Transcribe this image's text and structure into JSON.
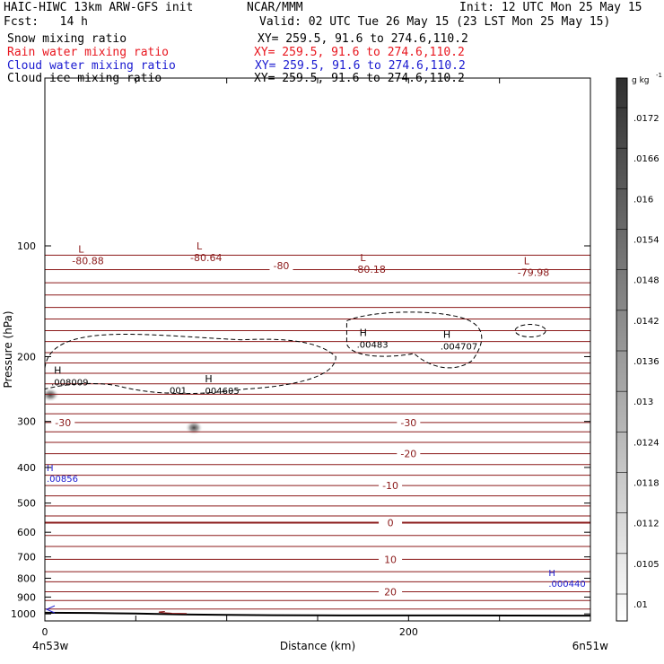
{
  "header": {
    "model": "HAIC-HIWC 13km ARW-GFS init",
    "org": "NCAR/MMM",
    "init": "Init: 12 UTC Mon 25 May 15",
    "fcst": "Fcst:   14 h",
    "valid": "Valid: 02 UTC Tue 26 May 15 (23 LST Mon 25 May 15)"
  },
  "fields": [
    {
      "name": "Snow mixing ratio",
      "xy": "XY= 259.5, 91.6 to 274.6,110.2",
      "color": "#000000"
    },
    {
      "name": "Rain water mixing ratio",
      "xy": "XY= 259.5, 91.6 to 274.6,110.2",
      "color": "#e8161e"
    },
    {
      "name": "Cloud water mixing ratio",
      "xy": "XY= 259.5, 91.6 to 274.6,110.2",
      "color": "#1a1ad0"
    },
    {
      "name": "Cloud ice mixing ratio",
      "xy": "XY= 259.5, 91.6 to 274.6,110.2",
      "color": "#000000"
    }
  ],
  "chart_data": {
    "type": "cross-section",
    "ylabel": "Pressure (hPa)",
    "xlabel": "Distance (km)",
    "x_endpoint_labels": [
      "4n53w",
      "6n51w"
    ],
    "xlim": [
      0,
      300
    ],
    "x_ticks": [
      0,
      200
    ],
    "ylim_hPa": [
      1045,
      35
    ],
    "y_ticks": [
      100,
      200,
      300,
      400,
      500,
      600,
      700,
      800,
      900,
      1000
    ],
    "log_pressure_axis": true,
    "colorbar": {
      "unit": "g kg",
      "unit_exponent": "-1",
      "ticks": [
        ".0172",
        ".0166",
        ".016",
        ".0154",
        ".0148",
        ".0142",
        ".0136",
        ".013",
        ".0124",
        ".0118",
        ".0112",
        ".0105",
        ".01"
      ],
      "range": [
        0.0097,
        0.0175
      ]
    },
    "temperature_contours": {
      "color": "#8b1a1a",
      "line_label_vals": [
        "-80",
        "-30",
        "-30",
        "-20",
        "-10",
        "0",
        "10",
        "20"
      ],
      "line_label_pos": [
        [
          130,
          113
        ],
        [
          10,
          302
        ],
        [
          200,
          302
        ],
        [
          200,
          367
        ],
        [
          190,
          448
        ],
        [
          190,
          565
        ],
        [
          190,
          711
        ],
        [
          190,
          871
        ]
      ],
      "zero_line_p": 565,
      "line_p": [
        106,
        116,
        126,
        136,
        147,
        158,
        170,
        182,
        195,
        208,
        222,
        237,
        253,
        269,
        286,
        302,
        320,
        342,
        367,
        393,
        420,
        448,
        478,
        509,
        542,
        565,
        612,
        656,
        711,
        768,
        818,
        871,
        920,
        970
      ],
      "extrema": [
        {
          "type": "L",
          "value": "-80.88",
          "x": 10,
          "p": 106
        },
        {
          "type": "L",
          "value": "-80.64",
          "x": 75,
          "p": 104
        },
        {
          "type": "L",
          "value": "-80.18",
          "x": 165,
          "p": 112
        },
        {
          "type": "L",
          "value": "-79.98",
          "x": 255,
          "p": 114
        }
      ]
    },
    "snow_contour": {
      "style": "dashed",
      "label": ".001",
      "label_pos": [
        67,
        252
      ],
      "extrema": [
        {
          "type": "H",
          "value": ".008009",
          "x": 5,
          "p": 238
        },
        {
          "type": "H",
          "value": ".004605",
          "x": 88,
          "p": 251
        },
        {
          "type": "H",
          "value": ".00483",
          "x": 173,
          "p": 188
        },
        {
          "type": "H",
          "value": ".004707",
          "x": 219,
          "p": 190
        }
      ]
    },
    "cloud_water": {
      "color": "#1a1ad0",
      "extrema": [
        {
          "type": "H",
          "value": ".00856",
          "x": 0,
          "p": 438
        },
        {
          "type": "H",
          "value": ".000440",
          "x": 276,
          "p": 845
        }
      ]
    },
    "rain_shading": [
      {
        "x": 82,
        "p": 312,
        "peak": 0.0172
      },
      {
        "x": 3,
        "p": 254,
        "peak": 0.0155
      }
    ],
    "terrain": [
      [
        0,
        993
      ],
      [
        25,
        994
      ],
      [
        50,
        998
      ],
      [
        75,
        1003
      ],
      [
        100,
        1006
      ],
      [
        125,
        1008
      ],
      [
        150,
        1009
      ],
      [
        175,
        1010
      ],
      [
        225,
        1010
      ],
      [
        300,
        1011
      ]
    ]
  }
}
